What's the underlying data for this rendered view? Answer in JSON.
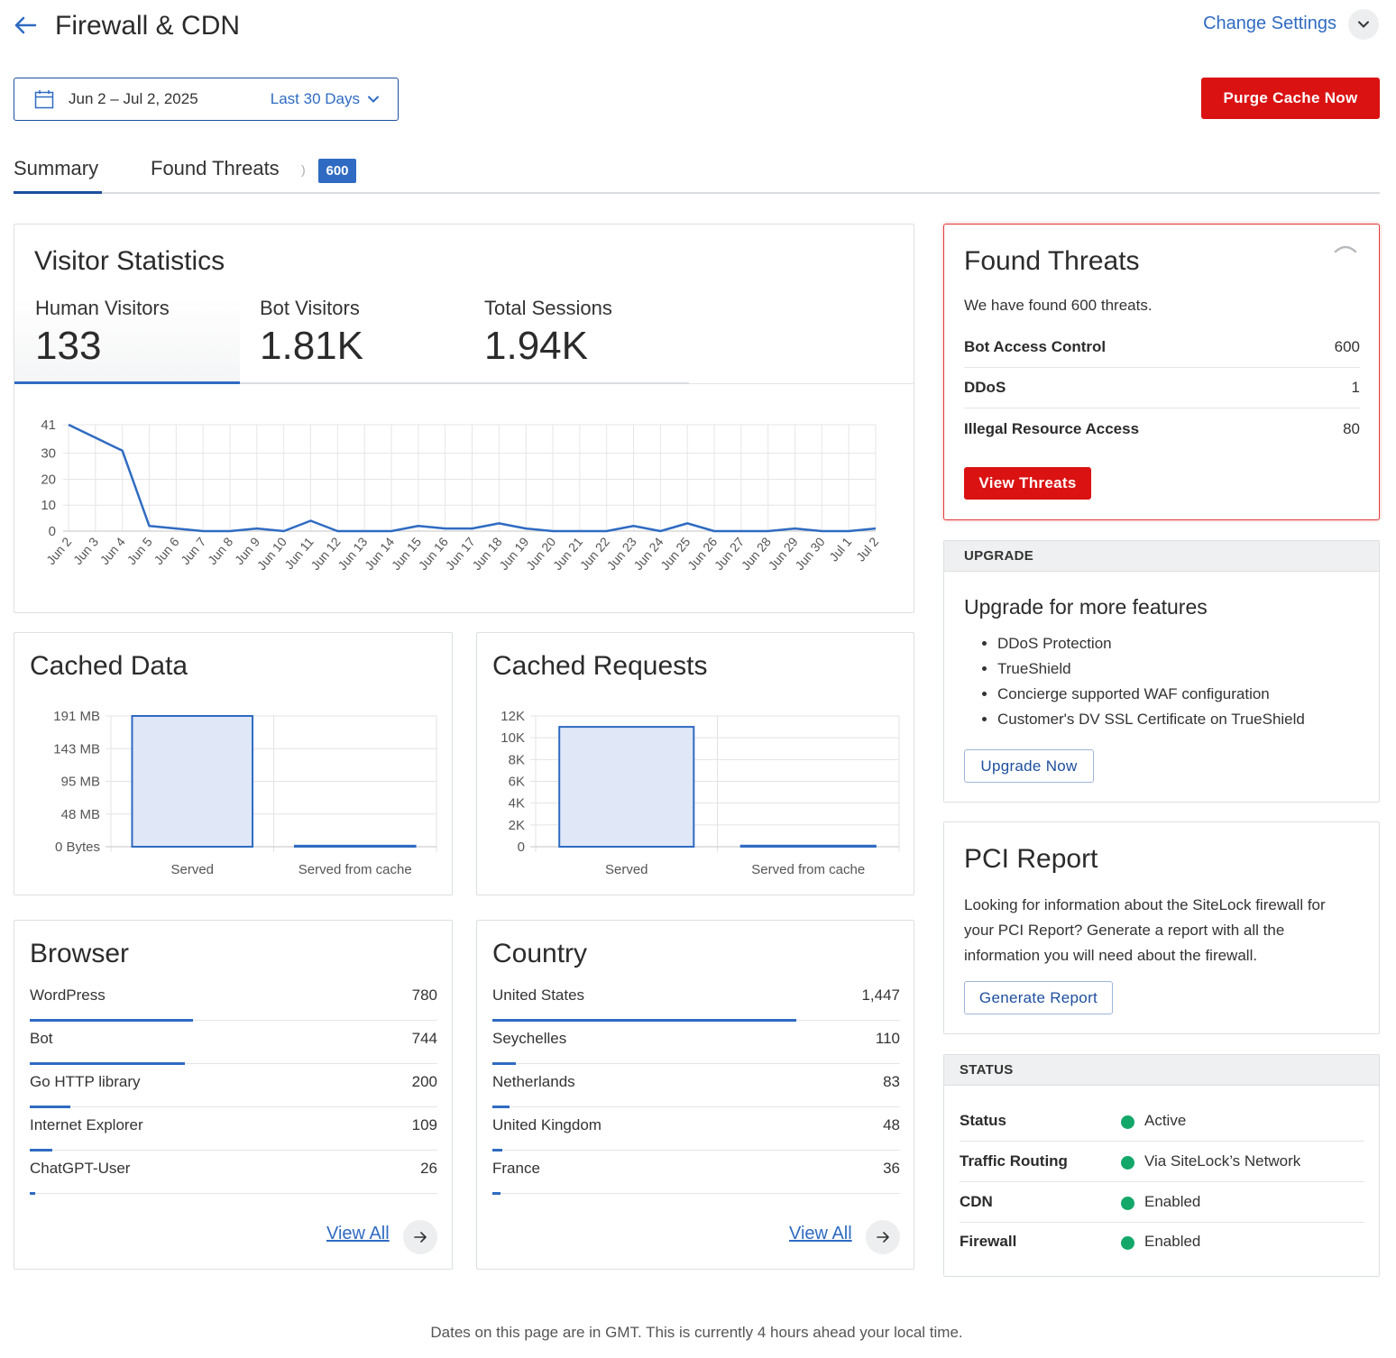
{
  "header": {
    "title": "Firewall & CDN",
    "change_settings": "Change Settings"
  },
  "date_picker": {
    "range": "Jun 2 – Jul 2, 2025",
    "preset": "Last 30 Days"
  },
  "purge_button": "Purge Cache Now",
  "tabs": [
    {
      "label": "Summary"
    },
    {
      "label": "Found Threats",
      "badge": "600"
    }
  ],
  "visitor_statistics": {
    "title": "Visitor Statistics",
    "stats": [
      {
        "label": "Human Visitors",
        "value": "133"
      },
      {
        "label": "Bot Visitors",
        "value": "1.81K"
      },
      {
        "label": "Total Sessions",
        "value": "1.94K"
      }
    ]
  },
  "chart_data": [
    {
      "type": "line",
      "title": "",
      "x": [
        "Jun 2",
        "Jun 3",
        "Jun 4",
        "Jun 5",
        "Jun 6",
        "Jun 7",
        "Jun 8",
        "Jun 9",
        "Jun 10",
        "Jun 11",
        "Jun 12",
        "Jun 13",
        "Jun 14",
        "Jun 15",
        "Jun 16",
        "Jun 17",
        "Jun 18",
        "Jun 19",
        "Jun 20",
        "Jun 21",
        "Jun 22",
        "Jun 23",
        "Jun 24",
        "Jun 25",
        "Jun 26",
        "Jun 27",
        "Jun 28",
        "Jun 29",
        "Jun 30",
        "Jul 1",
        "Jul 2"
      ],
      "series": [
        {
          "values": [
            41,
            36,
            31,
            2,
            1,
            0,
            0,
            1,
            0,
            4,
            0,
            0,
            0,
            2,
            1,
            1,
            3,
            1,
            0,
            0,
            0,
            2,
            0,
            3,
            0,
            0,
            0,
            1,
            0,
            0,
            1
          ]
        }
      ],
      "yticks": [
        "0",
        "10",
        "20",
        "30",
        "41"
      ],
      "ylim": [
        0,
        41
      ],
      "grid": true
    },
    {
      "type": "bar",
      "title": "Cached Data",
      "categories": [
        "Served",
        "Served from cache"
      ],
      "values": [
        191,
        1.5
      ],
      "yticks": [
        "0 Bytes",
        "48 MB",
        "95 MB",
        "143 MB",
        "191 MB"
      ],
      "ylim": [
        0,
        191
      ],
      "grid": true
    },
    {
      "type": "bar",
      "title": "Cached Requests",
      "categories": [
        "Served",
        "Served from cache"
      ],
      "values": [
        11000,
        100
      ],
      "yticks": [
        "0",
        "2K",
        "4K",
        "6K",
        "8K",
        "10K",
        "12K"
      ],
      "ylim": [
        0,
        12000
      ],
      "grid": true
    }
  ],
  "found_threats": {
    "title": "Found Threats",
    "summary": "We have found 600 threats.",
    "rows": [
      {
        "name": "Bot Access Control",
        "count": "600"
      },
      {
        "name": "DDoS",
        "count": "1"
      },
      {
        "name": "Illegal Resource Access",
        "count": "80"
      }
    ],
    "button": "View Threats"
  },
  "upgrade": {
    "header": "UPGRADE",
    "title": "Upgrade for more features",
    "features": [
      "DDoS Protection",
      "TrueShield",
      "Concierge supported WAF configuration",
      "Customer's DV SSL Certificate on TrueShield"
    ],
    "button": "Upgrade Now"
  },
  "pci": {
    "title": "PCI Report",
    "text_lines": [
      "Looking for information about the SiteLock firewall for",
      "your PCI Report? Generate a report with all the",
      "information you will need about the firewall."
    ],
    "button": "Generate Report"
  },
  "status": {
    "header": "STATUS",
    "rows": [
      {
        "key": "Status",
        "value": "Active"
      },
      {
        "key": "Traffic Routing",
        "value": "Via SiteLock’s Network"
      },
      {
        "key": "CDN",
        "value": "Enabled"
      },
      {
        "key": "Firewall",
        "value": "Enabled"
      }
    ],
    "status_color": "#13a86a"
  },
  "browser": {
    "title": "Browser",
    "rows": [
      {
        "name": "WordPress",
        "count": "780",
        "share": 0.4
      },
      {
        "name": "Bot",
        "count": "744",
        "share": 0.38
      },
      {
        "name": "Go HTTP library",
        "count": "200",
        "share": 0.1
      },
      {
        "name": "Internet Explorer",
        "count": "109",
        "share": 0.056
      },
      {
        "name": "ChatGPT-User",
        "count": "26",
        "share": 0.013
      }
    ],
    "view_all": "View All"
  },
  "country": {
    "title": "Country",
    "rows": [
      {
        "name": "United States",
        "count": "1,447",
        "share": 0.745
      },
      {
        "name": "Seychelles",
        "count": "110",
        "share": 0.057
      },
      {
        "name": "Netherlands",
        "count": "83",
        "share": 0.043
      },
      {
        "name": "United Kingdom",
        "count": "48",
        "share": 0.025
      },
      {
        "name": "France",
        "count": "36",
        "share": 0.019
      }
    ],
    "view_all": "View All"
  },
  "footer": "Dates on this page are in GMT. This is currently 4 hours ahead your local time.",
  "colors": {
    "accent": "#2f6bc2",
    "danger": "#db1212",
    "bar_fill": "#e0e7f7"
  }
}
